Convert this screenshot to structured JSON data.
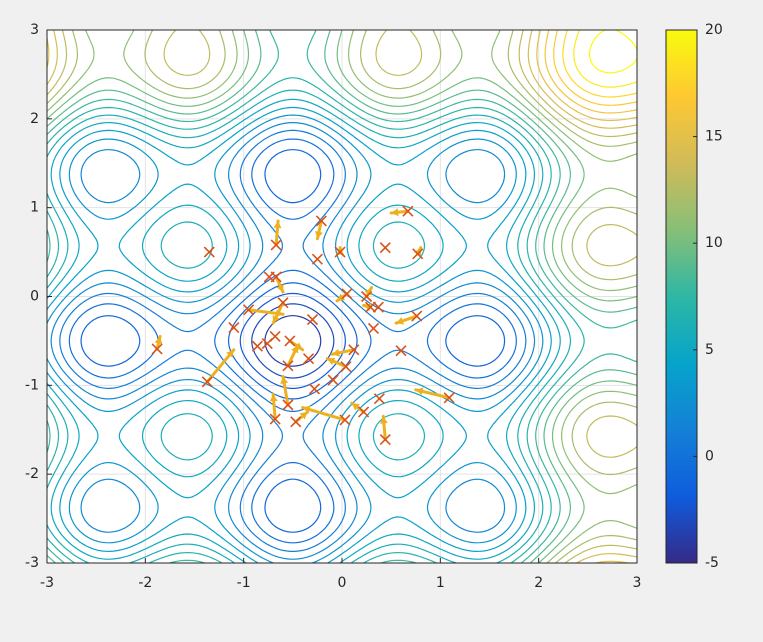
{
  "chart_data": {
    "type": "contour",
    "xlim": [
      -3,
      3
    ],
    "ylim": [
      -3,
      3
    ],
    "xticks": [
      -3,
      -2,
      -1,
      0,
      1,
      2,
      3
    ],
    "yticks": [
      -3,
      -2,
      -1,
      0,
      1,
      2,
      3
    ],
    "grid": true,
    "colorbar": {
      "lim": [
        -5,
        20
      ],
      "ticks": [
        -5,
        0,
        5,
        10,
        15,
        20
      ],
      "colormap": [
        "#352a87",
        "#0f5cdd",
        "#1481d6",
        "#06a4ca",
        "#2eb7a4",
        "#87bf77",
        "#d1bb59",
        "#fec832",
        "#f9fb0e"
      ]
    },
    "levels": [
      -4,
      -3,
      -2,
      -1,
      0,
      1,
      2,
      3,
      4,
      5,
      6,
      7,
      8,
      9,
      10,
      11,
      12,
      13,
      14,
      15,
      16,
      17,
      18,
      19,
      20
    ],
    "marker_color": "#d95319",
    "arrow_color": "#edb120",
    "x": [
      0.67,
      -0.21,
      -0.67,
      -1.35,
      -0.25,
      -0.02,
      0.44,
      0.77,
      -0.67,
      -0.74,
      0.05,
      0.25,
      0.29,
      0.37,
      -0.95,
      -0.6,
      -1.1,
      -0.3,
      0.76,
      0.32,
      -0.68,
      -0.76,
      -0.86,
      -0.53,
      -1.88,
      0.12,
      0.6,
      -0.34,
      -0.55,
      0.04,
      -1.37,
      -0.09,
      -0.28,
      1.09,
      0.38,
      0.22,
      -0.55,
      -0.68,
      -0.47,
      0.03,
      0.44
    ],
    "y": [
      0.96,
      0.85,
      0.58,
      0.5,
      0.42,
      0.5,
      0.55,
      0.48,
      0.22,
      0.22,
      0.03,
      0.0,
      -0.12,
      -0.12,
      -0.15,
      -0.07,
      -0.35,
      -0.26,
      -0.22,
      -0.36,
      -0.45,
      -0.53,
      -0.56,
      -0.5,
      -0.59,
      -0.6,
      -0.61,
      -0.7,
      -0.78,
      -0.79,
      -0.96,
      -0.94,
      -1.04,
      -1.14,
      -1.15,
      -1.3,
      -1.22,
      -1.38,
      -1.41,
      -1.39,
      -1.61
    ],
    "arrow_x": [
      0.5,
      -0.25,
      -0.65,
      -1.35,
      -0.25,
      -0.02,
      0.44,
      0.8,
      -0.6,
      -0.74,
      -0.05,
      0.3,
      0.22,
      0.37,
      -0.6,
      -0.7,
      -1.1,
      -0.3,
      0.55,
      0.32,
      -0.68,
      -0.76,
      -0.86,
      -0.4,
      -1.85,
      -0.1,
      0.6,
      -0.34,
      -0.45,
      -0.15,
      -1.1,
      -0.09,
      -0.28,
      0.75,
      0.38,
      0.1,
      -0.6,
      -0.7,
      -0.35,
      -0.4,
      0.42
    ],
    "arrow_y": [
      0.94,
      0.65,
      0.85,
      0.5,
      0.42,
      0.55,
      0.55,
      0.55,
      0.05,
      0.22,
      -0.05,
      0.1,
      -0.1,
      -0.12,
      -0.2,
      -0.3,
      -0.35,
      -0.26,
      -0.3,
      -0.36,
      -0.45,
      -0.53,
      -0.56,
      -0.6,
      -0.45,
      -0.65,
      -0.61,
      -0.7,
      -0.55,
      -0.7,
      -0.6,
      -0.94,
      -1.04,
      -1.05,
      -1.15,
      -1.2,
      -0.9,
      -1.1,
      -1.3,
      -1.25,
      -1.35
    ]
  }
}
